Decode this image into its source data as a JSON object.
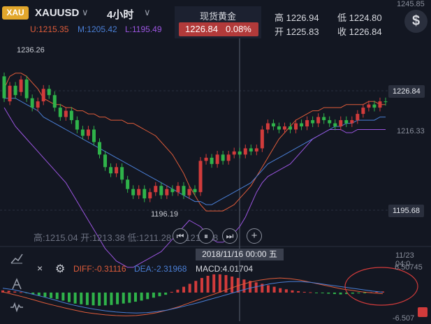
{
  "header": {
    "logo_text": "XAU",
    "symbol": "XAUUSD",
    "timeframe": "4小时",
    "chevron": "∨"
  },
  "indicators": {
    "upper": "U:1215.35",
    "middle": "M:1205.42",
    "lower": "L:1195.49"
  },
  "quote": {
    "name": "现货黄金",
    "price": "1226.84",
    "change": "0.08%",
    "high": "高 1226.94",
    "open": "开 1225.83",
    "low": "低 1224.80",
    "close": "收 1226.84"
  },
  "axis": {
    "top_cut": "1245.85",
    "current_price": "1226.84",
    "mid_label": "1216.33",
    "low_price": "1195.68",
    "high_annotation": "1236.26",
    "low_annotation": "1196.19"
  },
  "bottom_ohlc": "高:1215.04 开:1213.38 低:1211.28 收:1214.28",
  "crosshair_date": "2018/11/16 00:00 五",
  "axis_date_right": "11/23 04:0",
  "macd": {
    "diff": "DIFF:-0.31116",
    "dea": "DEA:-2.31968",
    "macd": "MACD:4.01704",
    "max": "6.50745",
    "min": "-6.507"
  },
  "colors": {
    "background": "#131722",
    "up": "#d13b3b",
    "down": "#2fb34a",
    "upper_band": "#e05c3a",
    "middle_band": "#4a7fd6",
    "lower_band": "#9b55e0",
    "quote_box": "#b23a3a"
  },
  "icons": {
    "dollar": "$",
    "play_back": "⏮",
    "pause": "⏸",
    "play_forward": "⏭",
    "plus": "+",
    "close": "×",
    "gear": "⚙"
  },
  "chart_data": {
    "type": "candlestick",
    "bollinger": {
      "upper": [
        1231,
        1235,
        1236,
        1236,
        1235,
        1233,
        1231,
        1228,
        1227,
        1226,
        1226,
        1225,
        1225,
        1224,
        1224,
        1223,
        1223,
        1222,
        1222,
        1221,
        1221,
        1221,
        1220,
        1220,
        1219,
        1218,
        1217,
        1216,
        1214,
        1212,
        1210,
        1207,
        1204,
        1200,
        1197,
        1194,
        1192,
        1192,
        1192,
        1192,
        1193,
        1194,
        1196,
        1198,
        1200,
        1203,
        1206,
        1209,
        1212,
        1215,
        1217,
        1219,
        1221,
        1222,
        1223,
        1224,
        1224,
        1225,
        1225,
        1225,
        1225,
        1226,
        1226,
        1226,
        1226,
        1227,
        1227,
        1226,
        1226
      ],
      "middle": [
        1228,
        1228,
        1228,
        1227,
        1226,
        1225,
        1224,
        1222,
        1221,
        1220,
        1219,
        1218,
        1217,
        1216,
        1215,
        1214,
        1213,
        1212,
        1211,
        1210,
        1209,
        1208,
        1207,
        1206,
        1205,
        1204,
        1203,
        1202,
        1201,
        1200,
        1199,
        1198,
        1197,
        1196,
        1195,
        1195,
        1194,
        1194,
        1195,
        1196,
        1197,
        1198,
        1199,
        1200,
        1201,
        1203,
        1205,
        1207,
        1208,
        1209,
        1210,
        1211,
        1212,
        1213,
        1214,
        1215,
        1216,
        1217,
        1218,
        1219,
        1219,
        1220,
        1220,
        1221,
        1221,
        1221,
        1221,
        1222,
        1222
      ],
      "lower": [
        1225,
        1222,
        1219,
        1217,
        1215,
        1213,
        1211,
        1209,
        1207,
        1205,
        1203,
        1201,
        1198,
        1195,
        1192,
        1189,
        1186,
        1183,
        1180,
        1178,
        1176,
        1175,
        1174,
        1174,
        1175,
        1176,
        1177,
        1178,
        1179,
        1181,
        1183,
        1185,
        1187,
        1189,
        1188,
        1187,
        1185,
        1183,
        1182,
        1182,
        1183,
        1185,
        1187,
        1190,
        1194,
        1198,
        1201,
        1203,
        1204,
        1205,
        1206,
        1207,
        1209,
        1211,
        1213,
        1215,
        1216,
        1217,
        1218,
        1218,
        1218,
        1217,
        1217,
        1218,
        1218,
        1218,
        1218,
        1218,
        1218
      ]
    },
    "candles": [
      [
        1235,
        1228
      ],
      [
        1227,
        1232
      ],
      [
        1232,
        1229
      ],
      [
        1230,
        1234
      ],
      [
        1234,
        1228
      ],
      [
        1228,
        1225
      ],
      [
        1225,
        1227
      ],
      [
        1227,
        1231
      ],
      [
        1231,
        1229
      ],
      [
        1229,
        1225
      ],
      [
        1225,
        1222
      ],
      [
        1222,
        1224
      ],
      [
        1224,
        1221
      ],
      [
        1221,
        1218
      ],
      [
        1218,
        1216
      ],
      [
        1216,
        1218
      ],
      [
        1218,
        1214
      ],
      [
        1214,
        1210
      ],
      [
        1210,
        1206
      ],
      [
        1206,
        1204
      ],
      [
        1204,
        1206
      ],
      [
        1206,
        1202
      ],
      [
        1202,
        1199
      ],
      [
        1199,
        1197
      ],
      [
        1197,
        1199
      ],
      [
        1199,
        1196
      ],
      [
        1196,
        1198
      ],
      [
        1198,
        1200
      ],
      [
        1200,
        1197
      ],
      [
        1197,
        1199
      ],
      [
        1199,
        1198
      ],
      [
        1198,
        1200
      ],
      [
        1200,
        1197
      ],
      [
        1197,
        1199
      ],
      [
        1199,
        1198
      ],
      [
        1198,
        1208
      ],
      [
        1208,
        1209
      ],
      [
        1209,
        1207
      ],
      [
        1207,
        1210
      ],
      [
        1210,
        1208
      ],
      [
        1208,
        1210
      ],
      [
        1210,
        1211
      ],
      [
        1211,
        1210
      ],
      [
        1210,
        1212
      ],
      [
        1212,
        1211
      ],
      [
        1211,
        1212
      ],
      [
        1212,
        1218
      ],
      [
        1218,
        1220
      ],
      [
        1220,
        1219
      ],
      [
        1219,
        1218
      ],
      [
        1218,
        1219
      ],
      [
        1219,
        1218
      ],
      [
        1218,
        1220
      ],
      [
        1220,
        1219
      ],
      [
        1219,
        1221
      ],
      [
        1221,
        1220
      ],
      [
        1220,
        1222
      ],
      [
        1222,
        1221
      ],
      [
        1221,
        1220
      ],
      [
        1220,
        1219
      ],
      [
        1219,
        1221
      ],
      [
        1221,
        1220
      ],
      [
        1220,
        1221
      ],
      [
        1221,
        1223
      ],
      [
        1223,
        1225
      ],
      [
        1225,
        1226
      ],
      [
        1226,
        1225
      ],
      [
        1225,
        1227
      ],
      [
        1227,
        1226.84
      ]
    ],
    "macd_hist": [
      0.6,
      0.5,
      0.3,
      0.1,
      -0.2,
      -0.5,
      -0.8,
      -1.2,
      -1.5,
      -1.8,
      -2.2,
      -2.6,
      -3.0,
      -3.2,
      -3.4,
      -3.5,
      -3.6,
      -3.5,
      -3.4,
      -3.2,
      -3.0,
      -2.8,
      -2.5,
      -2.2,
      -1.8,
      -1.4,
      -1.0,
      -0.6,
      0.2,
      0.8,
      1.6,
      2.4,
      3.2,
      4.0,
      4.6,
      5.0,
      5.0,
      4.8,
      4.4,
      4.0,
      3.6,
      3.2,
      2.8,
      2.4,
      2.0,
      1.6,
      1.2,
      0.9,
      0.6,
      0.4,
      0.2,
      0.1,
      -0.1,
      -0.2,
      -0.3,
      -0.4,
      -0.5,
      -0.4,
      -0.3,
      -0.2,
      -0.1,
      0.1,
      0.2,
      0.3
    ],
    "diff_line": [
      0.2,
      -0.5,
      -1.2,
      -2.0,
      -2.8,
      -3.5,
      -4.2,
      -4.8,
      -5.4,
      -5.8,
      -6.1,
      -6.3,
      -6.4,
      -6.3,
      -6.0,
      -5.5,
      -4.8,
      -4.0,
      -3.0,
      -2.0,
      -1.0,
      0.0,
      1.0,
      2.0,
      2.8,
      3.4,
      3.8,
      4.0,
      3.8,
      3.4,
      2.8,
      2.2,
      1.6,
      1.0,
      0.6,
      0.2,
      -0.1,
      -0.3
    ],
    "dea_line": [
      1.2,
      0.8,
      0.2,
      -0.5,
      -1.2,
      -2.0,
      -2.8,
      -3.5,
      -4.1,
      -4.6,
      -5.0,
      -5.3,
      -5.5,
      -5.6,
      -5.5,
      -5.2,
      -4.8,
      -4.2,
      -3.5,
      -2.8,
      -2.0,
      -1.2,
      -0.4,
      0.4,
      1.2,
      1.8,
      2.4,
      2.8,
      3.0,
      3.0,
      2.8,
      2.4,
      2.0,
      1.6,
      1.2,
      0.8,
      0.4,
      0.1
    ],
    "ylim_main": [
      1188,
      1246
    ],
    "ylim_macd": [
      -6.507,
      6.50745
    ]
  }
}
